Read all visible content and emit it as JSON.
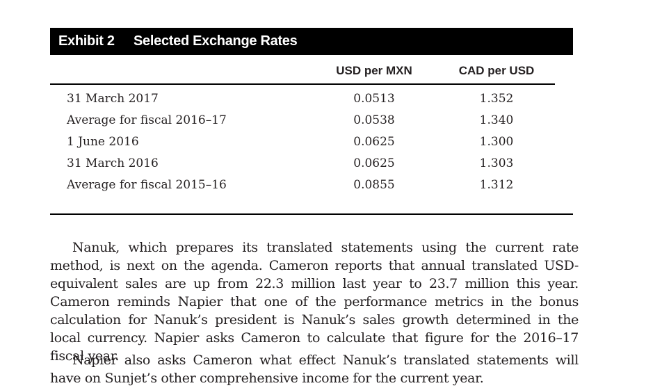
{
  "exhibit": {
    "number": "Exhibit 2",
    "title": "Selected Exchange Rates"
  },
  "table": {
    "columns": [
      "",
      "USD per MXN",
      "CAD per USD"
    ],
    "rows": [
      {
        "label": "31 March 2017",
        "usd_per_mxn": "0.0513",
        "cad_per_usd": "1.352"
      },
      {
        "label": "Average for fiscal 2016–17",
        "usd_per_mxn": "0.0538",
        "cad_per_usd": "1.340"
      },
      {
        "label": "1 June 2016",
        "usd_per_mxn": "0.0625",
        "cad_per_usd": "1.300"
      },
      {
        "label": "31 March 2016",
        "usd_per_mxn": "0.0625",
        "cad_per_usd": "1.303"
      },
      {
        "label": "Average for fiscal 2015–16",
        "usd_per_mxn": "0.0855",
        "cad_per_usd": "1.312"
      }
    ]
  },
  "paragraphs": [
    "Nanuk, which prepares its translated statements using the current rate method, is next on the agenda. Cameron reports that annual translated USD-equivalent sales are up from 22.3 million last year to 23.7 million this year. Cameron reminds Napier that one of the performance metrics in the bonus calculation for Nanuk’s president is Nanuk’s sales growth determined in the local currency. Napier asks Cameron to calculate that figure for the 2016–17 fiscal year.",
    "Napier also asks Cameron what effect Nanuk’s translated statements will have on Sunjet’s other comprehensive income for the current year."
  ]
}
